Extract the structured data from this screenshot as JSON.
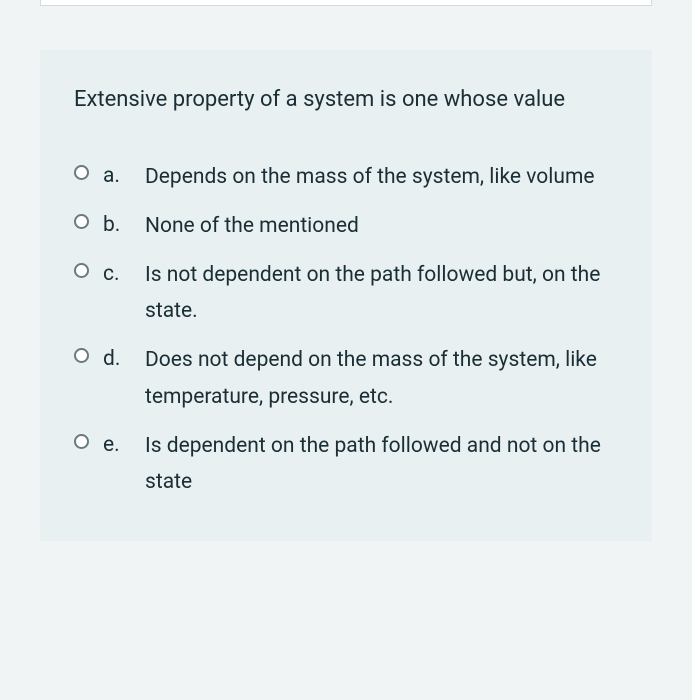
{
  "question": {
    "text": "Extensive property of a system is one whose value",
    "options": [
      {
        "letter": "a.",
        "text": "Depends on the mass of the system, like volume"
      },
      {
        "letter": "b.",
        "text": "None of the mentioned"
      },
      {
        "letter": "c.",
        "text": "Is not dependent on the path followed but, on the state."
      },
      {
        "letter": "d.",
        "text": "Does not depend on the mass of the system, like temperature, pressure, etc."
      },
      {
        "letter": "e.",
        "text": "Is dependent on the path followed and not on the state"
      }
    ]
  },
  "colors": {
    "page_background": "#f0f4f5",
    "card_background": "#e8f0f2",
    "text_color": "#1a2e35",
    "radio_border": "#6b7a7f",
    "top_box_border": "#d4d9dc"
  }
}
